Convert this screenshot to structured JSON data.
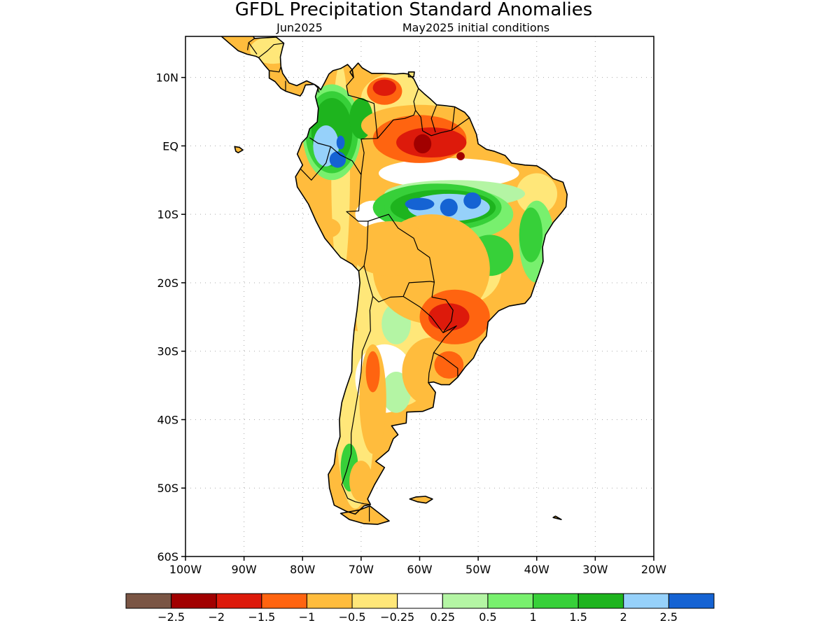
{
  "title": "GFDL Precipitation Standard Anomalies",
  "subtitle_left": "Jun2025",
  "subtitle_right": "May2025 initial conditions",
  "map": {
    "lon_range": [
      -100,
      -20
    ],
    "lat_range": [
      -60,
      16
    ],
    "lat_ticks": [
      {
        "value": 10,
        "label": "10N"
      },
      {
        "value": 0,
        "label": "EQ"
      },
      {
        "value": -10,
        "label": "10S"
      },
      {
        "value": -20,
        "label": "20S"
      },
      {
        "value": -30,
        "label": "30S"
      },
      {
        "value": -40,
        "label": "40S"
      },
      {
        "value": -50,
        "label": "50S"
      },
      {
        "value": -60,
        "label": "60S"
      }
    ],
    "lon_ticks": [
      {
        "value": -100,
        "label": "100W"
      },
      {
        "value": -90,
        "label": "90W"
      },
      {
        "value": -80,
        "label": "80W"
      },
      {
        "value": -70,
        "label": "70W"
      },
      {
        "value": -60,
        "label": "60W"
      },
      {
        "value": -50,
        "label": "50W"
      },
      {
        "value": -40,
        "label": "40W"
      },
      {
        "value": -30,
        "label": "30W"
      },
      {
        "value": -20,
        "label": "20W"
      }
    ],
    "grid": true
  },
  "colorbar": {
    "colors": [
      "#7a5544",
      "#a10000",
      "#dd1a0b",
      "#ff6410",
      "#ffbc3d",
      "#ffe779",
      "#ffffff",
      "#b4f5a4",
      "#78f06e",
      "#37d039",
      "#1eb41e",
      "#96d1fa",
      "#1563d3"
    ],
    "labels": [
      "−2.5",
      "−2",
      "−1.5",
      "−1",
      "−0.5",
      "−0.25",
      "0.25",
      "0.5",
      "1",
      "1.5",
      "2",
      "2.5"
    ]
  },
  "anomaly_regions": [
    {
      "value": -0.5,
      "lon": -73.5,
      "lat": -4,
      "rx": 1.6,
      "ry": 16
    },
    {
      "value": -0.5,
      "lon": -71,
      "lat": -40,
      "rx": 3.2,
      "ry": 13
    },
    {
      "value": -0.5,
      "lon": -63,
      "lat": -22,
      "rx": 8,
      "ry": 16
    },
    {
      "value": -0.5,
      "lon": -62,
      "lat": 7,
      "rx": 8,
      "ry": 4
    },
    {
      "value": -0.5,
      "lon": -40,
      "lat": -7,
      "rx": 3.5,
      "ry": 3
    },
    {
      "value": -0.5,
      "lon": -85,
      "lat": 14,
      "rx": 4,
      "ry": 2
    },
    {
      "value": -0.5,
      "lon": -52,
      "lat": -18,
      "rx": 6,
      "ry": 5
    },
    {
      "value": -0.25,
      "lon": -66,
      "lat": -34,
      "rx": 5,
      "ry": 5
    },
    {
      "value": -0.25,
      "lon": -55,
      "lat": -4,
      "rx": 12,
      "ry": 2.2
    },
    {
      "value": -0.25,
      "lon": -68,
      "lat": -10,
      "rx": 3,
      "ry": 2
    },
    {
      "value": 0.25,
      "lon": -64,
      "lat": -36,
      "rx": 2.5,
      "ry": 3
    },
    {
      "value": 0.25,
      "lon": -64,
      "lat": -26,
      "rx": 2.5,
      "ry": 3
    },
    {
      "value": 0.25,
      "lon": -54,
      "lat": -7,
      "rx": 12,
      "ry": 2
    },
    {
      "value": 0.5,
      "lon": -55,
      "lat": -10,
      "rx": 11,
      "ry": 4
    },
    {
      "value": 0.5,
      "lon": -40,
      "lat": -14,
      "rx": 3,
      "ry": 6
    },
    {
      "value": 0.5,
      "lon": -75,
      "lat": 2,
      "rx": 5,
      "ry": 7
    },
    {
      "value": 1,
      "lon": -75,
      "lat": 2,
      "rx": 4.5,
      "ry": 6
    },
    {
      "value": 1,
      "lon": -57,
      "lat": -9,
      "rx": 11,
      "ry": 3.5
    },
    {
      "value": 1,
      "lon": -63,
      "lat": -9,
      "rx": 3,
      "ry": 1.8
    },
    {
      "value": 1,
      "lon": -48,
      "lat": -16,
      "rx": 4,
      "ry": 3
    },
    {
      "value": 1,
      "lon": -41,
      "lat": -13,
      "rx": 2,
      "ry": 4
    },
    {
      "value": 1,
      "lon": -72,
      "lat": -47,
      "rx": 1.5,
      "ry": 3.5
    },
    {
      "value": 1.5,
      "lon": -75,
      "lat": 2,
      "rx": 3.5,
      "ry": 5
    },
    {
      "value": 1.5,
      "lon": -56,
      "lat": -9,
      "rx": 9,
      "ry": 2.6
    },
    {
      "value": 1.5,
      "lon": -70,
      "lat": 4,
      "rx": 2,
      "ry": 3
    },
    {
      "value": 2,
      "lon": -76,
      "lat": 0,
      "rx": 2.2,
      "ry": 3
    },
    {
      "value": 2,
      "lon": -55,
      "lat": -9,
      "rx": 7,
      "ry": 2
    },
    {
      "value": 2.5,
      "lon": -74,
      "lat": -2,
      "rx": 1.4,
      "ry": 1.2
    },
    {
      "value": 2.5,
      "lon": -73.5,
      "lat": 0.5,
      "rx": 0.7,
      "ry": 1
    },
    {
      "value": 2.5,
      "lon": -60,
      "lat": -8.5,
      "rx": 2.5,
      "ry": 0.9
    },
    {
      "value": 2.5,
      "lon": -55,
      "lat": -9,
      "rx": 1.5,
      "ry": 1.3
    },
    {
      "value": 2.5,
      "lon": -51,
      "lat": -8,
      "rx": 1.5,
      "ry": 1.2
    },
    {
      "value": -1,
      "lon": -60,
      "lat": 3,
      "rx": 10,
      "ry": 3
    },
    {
      "value": -1,
      "lon": -58,
      "lat": -18,
      "rx": 10,
      "ry": 8
    },
    {
      "value": -1,
      "lon": -65,
      "lat": -15,
      "rx": 7,
      "ry": 4
    },
    {
      "value": -1,
      "lon": -68,
      "lat": -37,
      "rx": 2.3,
      "ry": 8
    },
    {
      "value": -1,
      "lon": -70,
      "lat": -49,
      "rx": 2,
      "ry": 3
    },
    {
      "value": -1,
      "lon": -58,
      "lat": -33,
      "rx": 5,
      "ry": 5
    },
    {
      "value": -1,
      "lon": -76,
      "lat": -12,
      "rx": 2.5,
      "ry": 1.5
    },
    {
      "value": -1.5,
      "lon": -60,
      "lat": 1,
      "rx": 8,
      "ry": 3.5
    },
    {
      "value": -1.5,
      "lon": -66,
      "lat": 8,
      "rx": 3,
      "ry": 2
    },
    {
      "value": -1.5,
      "lon": -54,
      "lat": -25,
      "rx": 6,
      "ry": 4
    },
    {
      "value": -1.5,
      "lon": -55,
      "lat": -32,
      "rx": 2.5,
      "ry": 2
    },
    {
      "value": -1.5,
      "lon": -68,
      "lat": -33,
      "rx": 1.2,
      "ry": 3
    },
    {
      "value": -2,
      "lon": -58,
      "lat": 0.5,
      "rx": 6,
      "ry": 2.2
    },
    {
      "value": -2,
      "lon": -55,
      "lat": -25,
      "rx": 3.5,
      "ry": 2
    },
    {
      "value": -2,
      "lon": -66,
      "lat": 8.5,
      "rx": 2,
      "ry": 1.2
    },
    {
      "value": -2.5,
      "lon": -59.5,
      "lat": 0.3,
      "rx": 1.5,
      "ry": 1.4
    },
    {
      "value": -2.5,
      "lon": -53,
      "lat": -1.5,
      "rx": 0.7,
      "ry": 0.6
    }
  ]
}
